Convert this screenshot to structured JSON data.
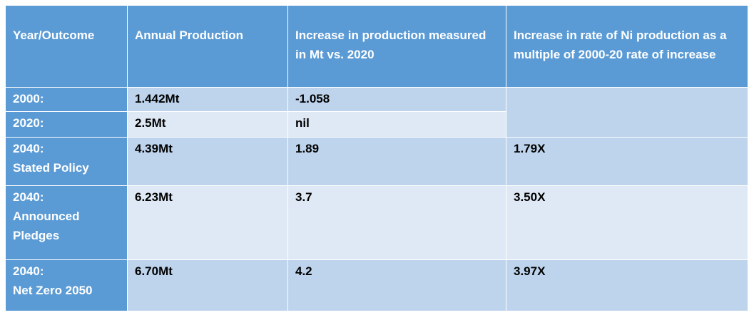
{
  "table": {
    "headers": [
      "Year/Outcome",
      "Annual Production",
      "Increase in production measured in Mt vs. 2020",
      "Increase in rate of Ni production as a multiple of 2000-20 rate of increase"
    ],
    "rows": [
      {
        "year": "2000:",
        "production": "1.442Mt",
        "increase": "-1.058",
        "multiple": ""
      },
      {
        "year": "2020:",
        "production": "2.5Mt",
        "increase": "nil",
        "multiple": ""
      },
      {
        "year": "2040:",
        "scenario": "Stated Policy",
        "production": "4.39Mt",
        "increase": "1.89",
        "multiple": "1.79X"
      },
      {
        "year": "2040:",
        "scenario": "Announced Pledges",
        "production": "6.23Mt",
        "increase": "3.7",
        "multiple": "3.50X"
      },
      {
        "year": "2040:",
        "scenario": "Net Zero 2050",
        "production": "6.70Mt",
        "increase": "4.2",
        "multiple": "3.97X"
      }
    ]
  }
}
